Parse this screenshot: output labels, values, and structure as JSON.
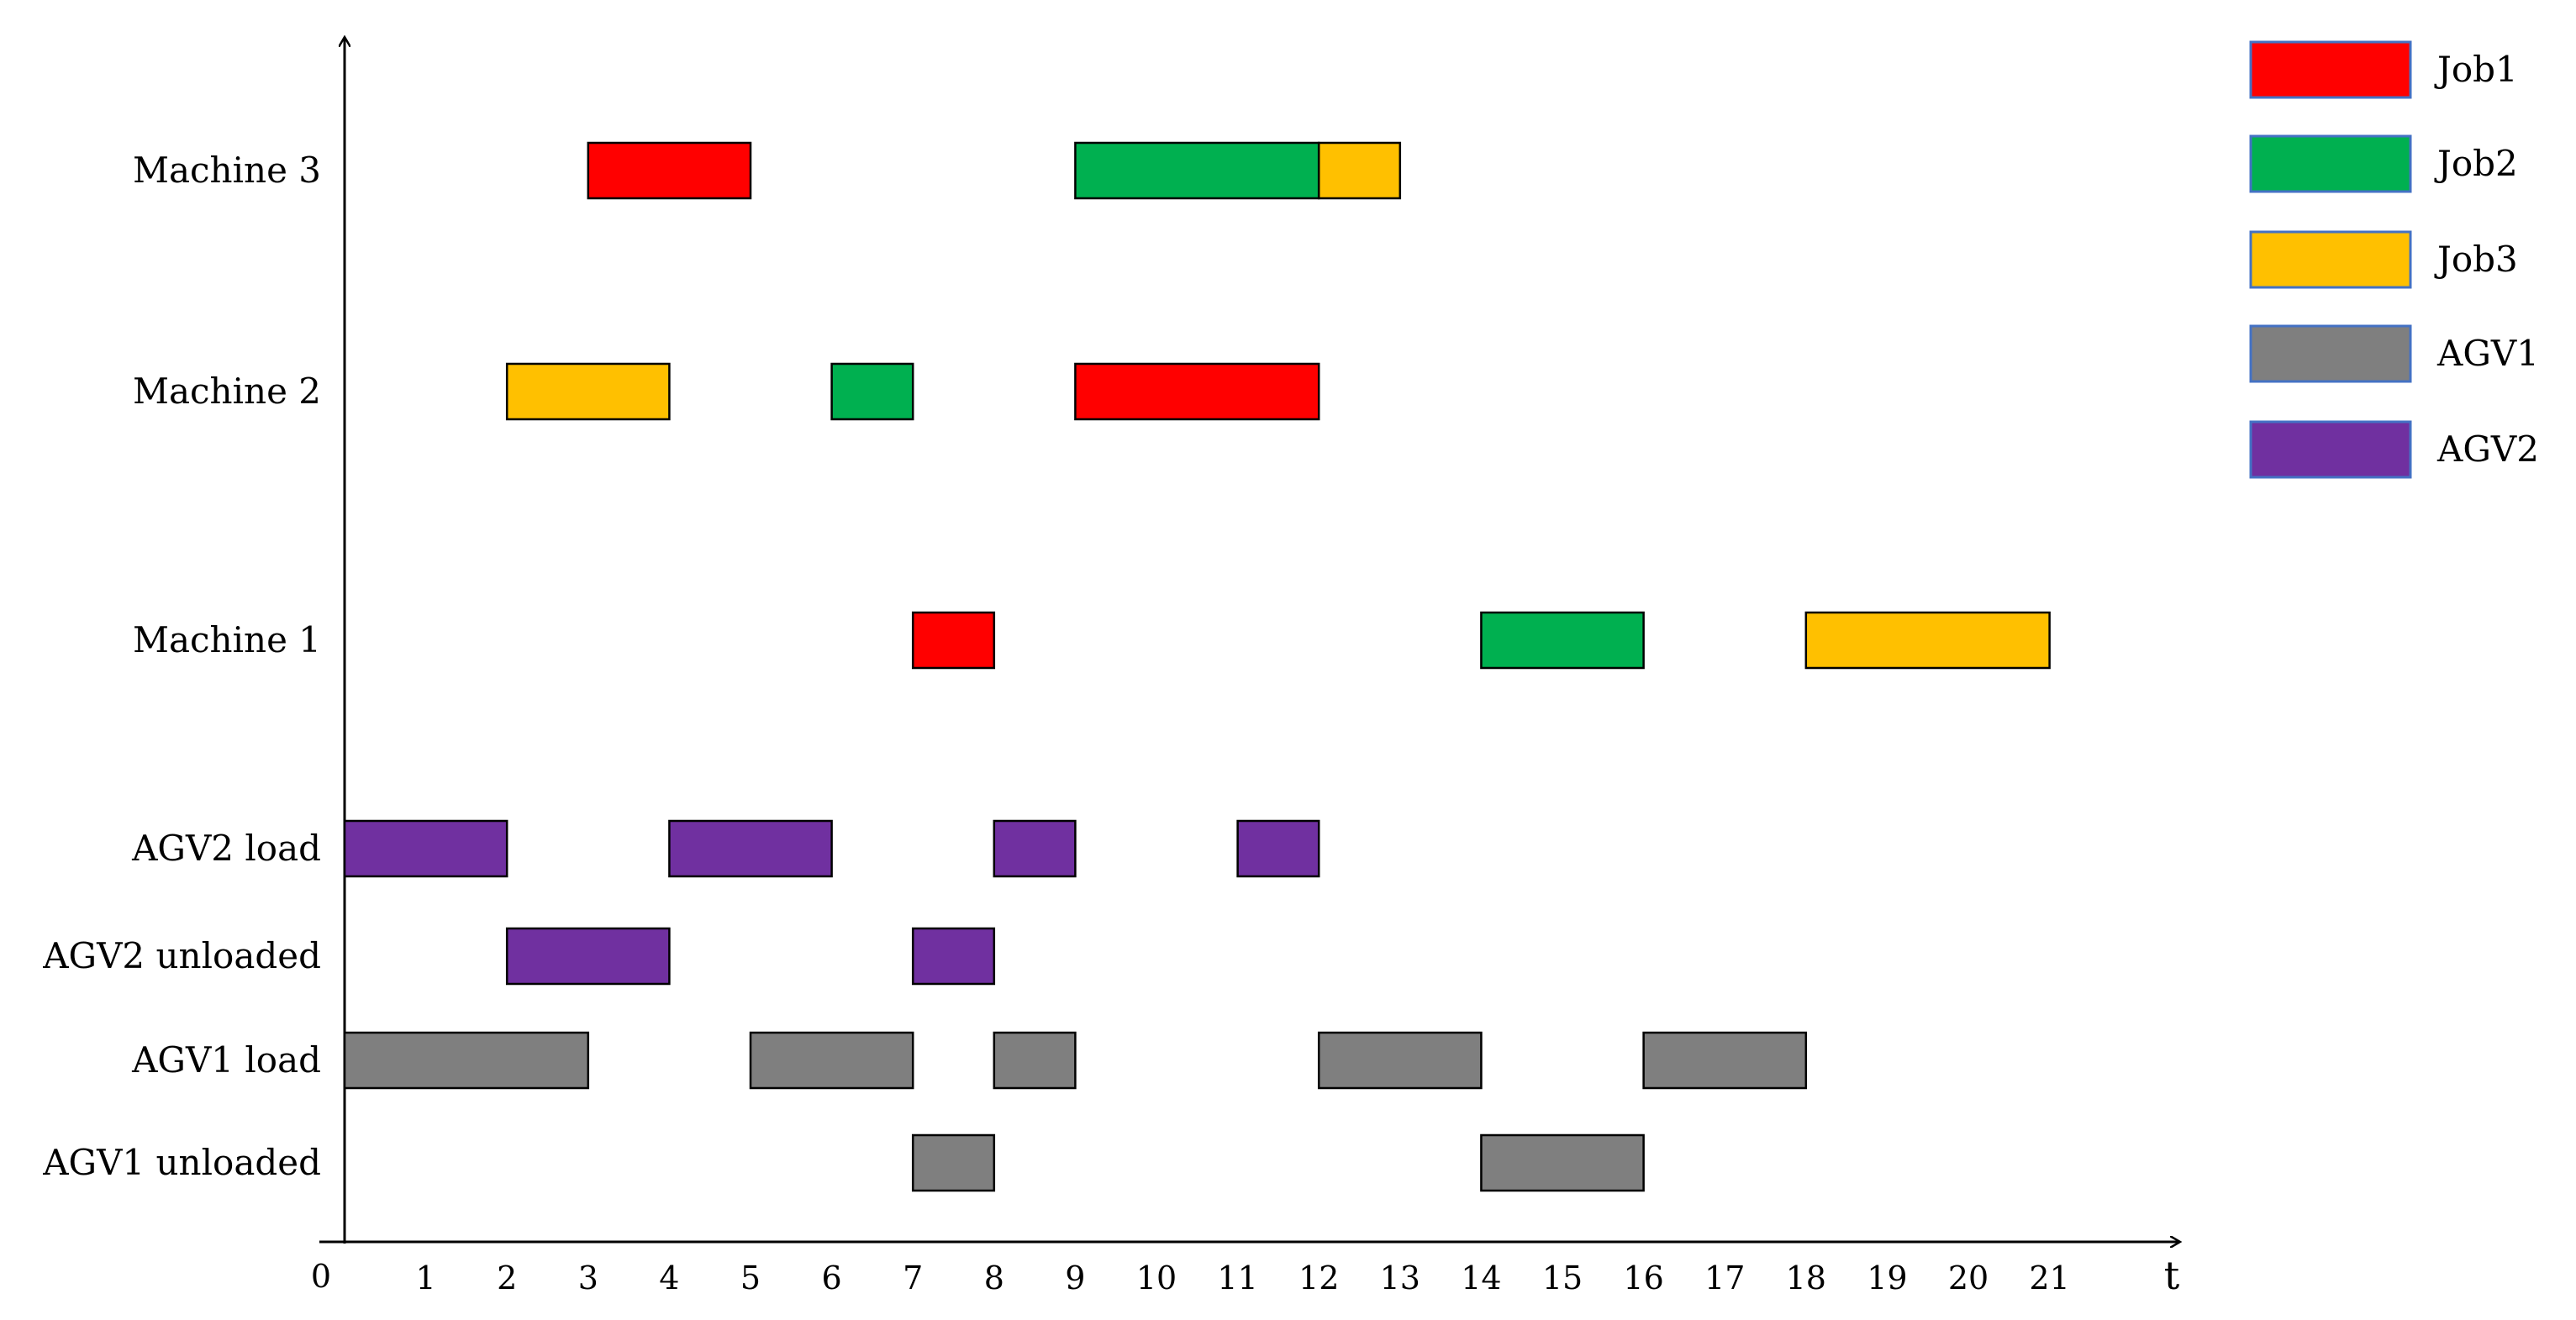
{
  "chart_data": {
    "type": "gantt",
    "x_axis": {
      "label": "t",
      "origin_label": "0",
      "range": [
        0,
        22.5
      ],
      "tick_values": [
        1,
        2,
        3,
        4,
        5,
        6,
        7,
        8,
        9,
        10,
        11,
        12,
        13,
        14,
        15,
        16,
        17,
        18,
        19,
        20,
        21
      ],
      "tick_positions": [
        1,
        2,
        3,
        4,
        5,
        6,
        7,
        8,
        9,
        10,
        11,
        12,
        13,
        14,
        15,
        16,
        17,
        18,
        19,
        20,
        21
      ]
    },
    "rows": [
      {
        "name": "Machine 3"
      },
      {
        "name": "Machine 2"
      },
      {
        "name": "Machine 1"
      },
      {
        "name": "AGV2 load"
      },
      {
        "name": "AGV2 unloaded"
      },
      {
        "name": "AGV1 load"
      },
      {
        "name": "AGV1 unloaded"
      }
    ],
    "legend": {
      "position": "top-right",
      "items": [
        {
          "label": "Job1",
          "color": "#ff0000"
        },
        {
          "label": "Job2",
          "color": "#00b050"
        },
        {
          "label": "Job3",
          "color": "#ffc000"
        },
        {
          "label": "AGV1",
          "color": "#7f7f7f"
        },
        {
          "label": "AGV2",
          "color": "#7030a0"
        }
      ]
    },
    "tasks": [
      {
        "row": "Machine 3",
        "series": "Job1",
        "start": 3,
        "end": 5
      },
      {
        "row": "Machine 3",
        "series": "Job2",
        "start": 9,
        "end": 12
      },
      {
        "row": "Machine 3",
        "series": "Job3",
        "start": 12,
        "end": 13
      },
      {
        "row": "Machine 2",
        "series": "Job3",
        "start": 2,
        "end": 4
      },
      {
        "row": "Machine 2",
        "series": "Job2",
        "start": 6,
        "end": 7
      },
      {
        "row": "Machine 2",
        "series": "Job1",
        "start": 9,
        "end": 12
      },
      {
        "row": "Machine 1",
        "series": "Job1",
        "start": 7,
        "end": 8
      },
      {
        "row": "Machine 1",
        "series": "Job2",
        "start": 14,
        "end": 16
      },
      {
        "row": "Machine 1",
        "series": "Job3",
        "start": 18,
        "end": 21
      },
      {
        "row": "AGV2 load",
        "series": "AGV2",
        "start": 0,
        "end": 2
      },
      {
        "row": "AGV2 load",
        "series": "AGV2",
        "start": 4,
        "end": 6
      },
      {
        "row": "AGV2 load",
        "series": "AGV2",
        "start": 8,
        "end": 9
      },
      {
        "row": "AGV2 load",
        "series": "AGV2",
        "start": 11,
        "end": 12
      },
      {
        "row": "AGV2 unloaded",
        "series": "AGV2",
        "start": 2,
        "end": 4
      },
      {
        "row": "AGV2 unloaded",
        "series": "AGV2",
        "start": 7,
        "end": 8
      },
      {
        "row": "AGV1 load",
        "series": "AGV1",
        "start": 0,
        "end": 3
      },
      {
        "row": "AGV1 load",
        "series": "AGV1",
        "start": 5,
        "end": 7
      },
      {
        "row": "AGV1 load",
        "series": "AGV1",
        "start": 8,
        "end": 9
      },
      {
        "row": "AGV1 load",
        "series": "AGV1",
        "start": 12,
        "end": 14
      },
      {
        "row": "AGV1 load",
        "series": "AGV1",
        "start": 16,
        "end": 18
      },
      {
        "row": "AGV1 unloaded",
        "series": "AGV1",
        "start": 7,
        "end": 8
      },
      {
        "row": "AGV1 unloaded",
        "series": "AGV1",
        "start": 14,
        "end": 16
      }
    ]
  }
}
